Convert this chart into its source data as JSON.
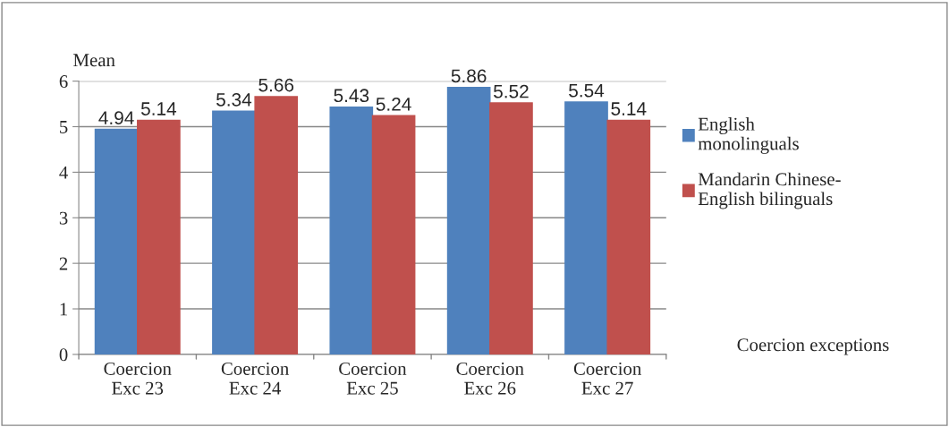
{
  "chart_data": {
    "type": "bar",
    "ylabel": "Mean",
    "xlabel": "Coercion exceptions",
    "categories": [
      "Coercion\nExc 23",
      "Coercion\nExc 24",
      "Coercion\nExc 25",
      "Coercion\nExc 26",
      "Coercion\nExc 27"
    ],
    "series": [
      {
        "name": "English\nmonolinguals",
        "color": "#4f81bd",
        "values": [
          4.94,
          5.34,
          5.43,
          5.86,
          5.54
        ]
      },
      {
        "name": "Mandarin Chinese-\nEnglish bilinguals",
        "color": "#c0504d",
        "values": [
          5.14,
          5.66,
          5.24,
          5.52,
          5.14
        ]
      }
    ],
    "ylim": [
      0,
      6
    ],
    "yticks": [
      0,
      1,
      2,
      3,
      4,
      5,
      6
    ],
    "grid": "y",
    "legend": "right",
    "data_labels": true
  }
}
